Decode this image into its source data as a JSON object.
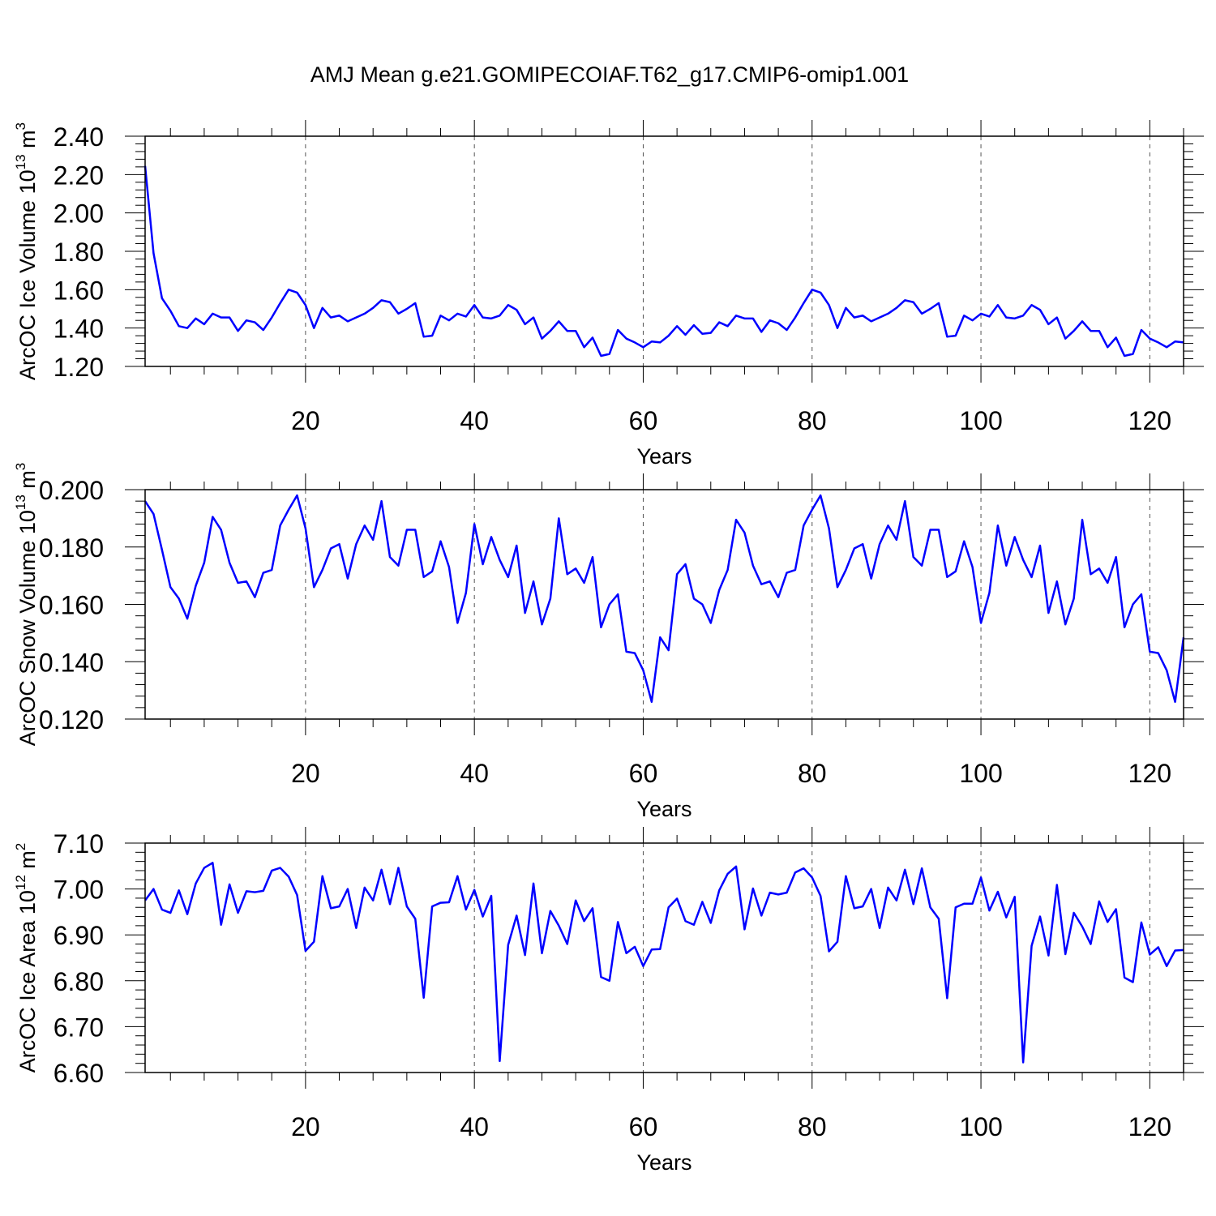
{
  "title": "AMJ Mean g.e21.GOMIPECOIAF.T62_g17.CMIP6-omip1.001",
  "line_color": "#0000ff",
  "chart_data": [
    {
      "type": "line",
      "ylabel": "ArcOC Ice Volume 10",
      "ylabel_exp": "13",
      "ylabel_unit": " m",
      "ylabel_unit_exp": "3",
      "xlabel": "Years",
      "xlim": [
        1,
        124
      ],
      "ylim": [
        1.2,
        2.4
      ],
      "xticks": [
        20,
        40,
        60,
        80,
        100,
        120
      ],
      "xtick_labels": [
        "20",
        "40",
        "60",
        "80",
        "100",
        "120"
      ],
      "yticks": [
        1.2,
        1.4,
        1.6,
        1.8,
        2.0,
        2.2,
        2.4
      ],
      "ytick_labels": [
        "1.20",
        "1.40",
        "1.60",
        "1.80",
        "2.00",
        "2.20",
        "2.40"
      ],
      "x_start": 1,
      "values": [
        2.245,
        1.79,
        1.555,
        1.49,
        1.41,
        1.4,
        1.45,
        1.42,
        1.475,
        1.455,
        1.455,
        1.385,
        1.44,
        1.43,
        1.39,
        1.455,
        1.53,
        1.6,
        1.585,
        1.52,
        1.4,
        1.505,
        1.455,
        1.465,
        1.435,
        1.455,
        1.475,
        1.505,
        1.545,
        1.535,
        1.475,
        1.5,
        1.53,
        1.355,
        1.36,
        1.465,
        1.44,
        1.475,
        1.46,
        1.52,
        1.455,
        1.45,
        1.465,
        1.52,
        1.495,
        1.42,
        1.455,
        1.345,
        1.385,
        1.435,
        1.385,
        1.385,
        1.3,
        1.35,
        1.255,
        1.265,
        1.39,
        1.345,
        1.325,
        1.3,
        1.33,
        1.325,
        1.36,
        1.41,
        1.365,
        1.415,
        1.37,
        1.375,
        1.43,
        1.41,
        1.465,
        1.45,
        1.45,
        1.38,
        1.44,
        1.425,
        1.39,
        1.455,
        1.53,
        1.6,
        1.585,
        1.52,
        1.4,
        1.505,
        1.455,
        1.465,
        1.435,
        1.455,
        1.475,
        1.505,
        1.545,
        1.535,
        1.475,
        1.5,
        1.53,
        1.355,
        1.36,
        1.465,
        1.44,
        1.475,
        1.46,
        1.52,
        1.455,
        1.45,
        1.465,
        1.52,
        1.495,
        1.42,
        1.455,
        1.345,
        1.385,
        1.435,
        1.385,
        1.385,
        1.3,
        1.35,
        1.255,
        1.265,
        1.39,
        1.345,
        1.325,
        1.3,
        1.33,
        1.325
      ]
    },
    {
      "type": "line",
      "ylabel": "ArcOC Snow Volume 10",
      "ylabel_exp": "13",
      "ylabel_unit": " m",
      "ylabel_unit_exp": "3",
      "xlabel": "Years",
      "xlim": [
        1,
        124
      ],
      "ylim": [
        0.12,
        0.2
      ],
      "xticks": [
        20,
        40,
        60,
        80,
        100,
        120
      ],
      "xtick_labels": [
        "20",
        "40",
        "60",
        "80",
        "100",
        "120"
      ],
      "yticks": [
        0.12,
        0.14,
        0.16,
        0.18,
        0.2
      ],
      "ytick_labels": [
        "0.120",
        "0.140",
        "0.160",
        "0.180",
        "0.200"
      ],
      "x_start": 1,
      "values": [
        0.196,
        0.1915,
        0.179,
        0.166,
        0.162,
        0.155,
        0.1665,
        0.1745,
        0.1905,
        0.186,
        0.1745,
        0.1675,
        0.168,
        0.1625,
        0.171,
        0.172,
        0.1875,
        0.193,
        0.198,
        0.1865,
        0.166,
        0.172,
        0.1795,
        0.181,
        0.169,
        0.181,
        0.1875,
        0.1825,
        0.196,
        0.1765,
        0.1735,
        0.186,
        0.186,
        0.1695,
        0.1715,
        0.182,
        0.173,
        0.1535,
        0.164,
        0.188,
        0.174,
        0.1835,
        0.1755,
        0.1695,
        0.1805,
        0.157,
        0.168,
        0.153,
        0.162,
        0.19,
        0.1705,
        0.1725,
        0.1675,
        0.1765,
        0.152,
        0.16,
        0.1635,
        0.1435,
        0.143,
        0.137,
        0.126,
        0.1485,
        0.144,
        0.1705,
        0.174,
        0.162,
        0.16,
        0.1535,
        0.165,
        0.172,
        0.1895,
        0.185,
        0.1735,
        0.167,
        0.168,
        0.1625,
        0.171,
        0.172,
        0.1875,
        0.193,
        0.198,
        0.1865,
        0.166,
        0.172,
        0.1795,
        0.181,
        0.169,
        0.181,
        0.1875,
        0.1825,
        0.196,
        0.1765,
        0.1735,
        0.186,
        0.186,
        0.1695,
        0.1715,
        0.182,
        0.173,
        0.1535,
        0.164,
        0.1875,
        0.1735,
        0.1835,
        0.1755,
        0.1695,
        0.1805,
        0.157,
        0.168,
        0.153,
        0.162,
        0.1895,
        0.1705,
        0.1725,
        0.1675,
        0.1765,
        0.152,
        0.16,
        0.1635,
        0.1435,
        0.143,
        0.137,
        0.126,
        0.1485
      ]
    },
    {
      "type": "line",
      "ylabel": "ArcOC Ice Area 10",
      "ylabel_exp": "12",
      "ylabel_unit": " m",
      "ylabel_unit_exp": "2",
      "xlabel": "Years",
      "xlim": [
        1,
        124
      ],
      "ylim": [
        6.6,
        7.1
      ],
      "xticks": [
        20,
        40,
        60,
        80,
        100,
        120
      ],
      "xtick_labels": [
        "20",
        "40",
        "60",
        "80",
        "100",
        "120"
      ],
      "yticks": [
        6.6,
        6.7,
        6.8,
        6.9,
        7.0,
        7.1
      ],
      "ytick_labels": [
        "6.60",
        "6.70",
        "6.80",
        "6.90",
        "7.00",
        "7.10"
      ],
      "x_start": 1,
      "values": [
        6.975,
        7.0,
        6.955,
        6.948,
        6.997,
        6.945,
        7.012,
        7.046,
        7.057,
        6.922,
        7.01,
        6.948,
        6.995,
        6.993,
        6.996,
        7.04,
        7.046,
        7.027,
        6.987,
        6.865,
        6.885,
        7.028,
        6.958,
        6.962,
        7.0,
        6.915,
        7.003,
        6.975,
        7.042,
        6.967,
        7.046,
        6.962,
        6.935,
        6.763,
        6.962,
        6.97,
        6.971,
        7.028,
        6.955,
        6.998,
        6.94,
        6.985,
        6.625,
        6.878,
        6.942,
        6.856,
        7.012,
        6.86,
        6.952,
        6.92,
        6.88,
        6.975,
        6.93,
        6.958,
        6.808,
        6.8,
        6.928,
        6.86,
        6.874,
        6.832,
        6.868,
        6.869,
        6.96,
        6.979,
        6.93,
        6.922,
        6.972,
        6.926,
        6.997,
        7.033,
        7.049,
        6.912,
        7.001,
        6.942,
        6.992,
        6.988,
        6.992,
        7.036,
        7.045,
        7.025,
        6.985,
        6.864,
        6.885,
        7.028,
        6.958,
        6.962,
        7.0,
        6.915,
        7.003,
        6.975,
        7.042,
        6.967,
        7.045,
        6.96,
        6.935,
        6.762,
        6.96,
        6.968,
        6.968,
        7.025,
        6.953,
        6.994,
        6.938,
        6.983,
        6.622,
        6.876,
        6.94,
        6.855,
        7.009,
        6.858,
        6.948,
        6.918,
        6.88,
        6.973,
        6.928,
        6.956,
        6.807,
        6.797,
        6.927,
        6.857,
        6.873,
        6.832,
        6.866,
        6.867
      ]
    }
  ]
}
